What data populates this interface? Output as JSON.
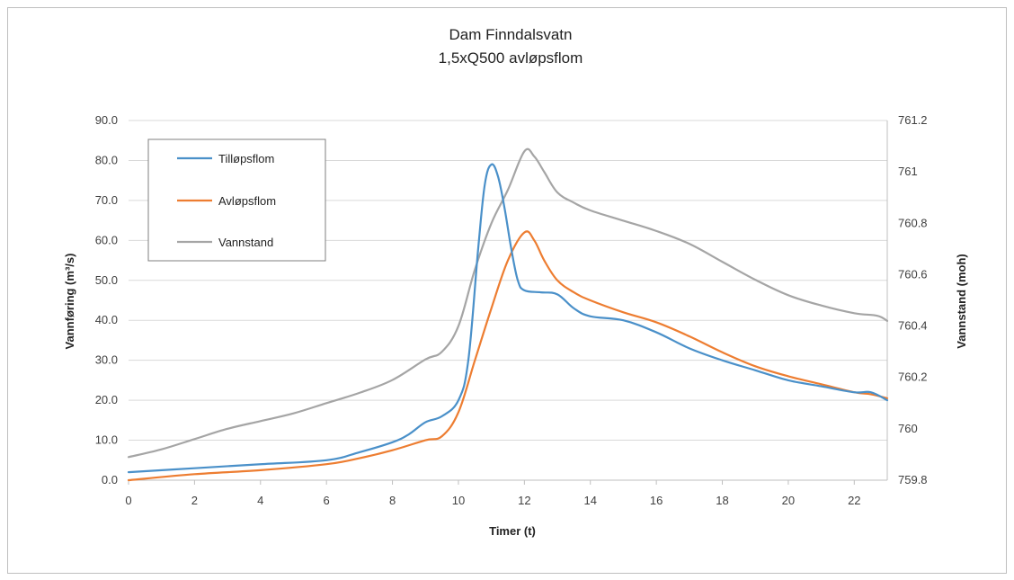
{
  "chart_data": {
    "type": "line",
    "title": "Dam Finndalsvatn",
    "subtitle": "1,5xQ500 avløpsflom",
    "xlabel": "Timer (t)",
    "ylabel": "Vannføring (m³/s)",
    "y2label": "Vannstand (moh)",
    "xlim": [
      0,
      23
    ],
    "ylim": [
      0,
      90
    ],
    "y2lim": [
      759.8,
      761.2
    ],
    "x_ticks": [
      "0",
      "2",
      "4",
      "6",
      "8",
      "10",
      "12",
      "14",
      "16",
      "18",
      "20",
      "22"
    ],
    "y_ticks": [
      "0.0",
      "10.0",
      "20.0",
      "30.0",
      "40.0",
      "50.0",
      "60.0",
      "70.0",
      "80.0",
      "90.0"
    ],
    "y2_ticks": [
      "759.8",
      "760",
      "760.2",
      "760.4",
      "760.6",
      "760.8",
      "761",
      "761.2"
    ],
    "grid": "horizontal",
    "legend_position": "top-left",
    "series": [
      {
        "name": "Tilløpsflom",
        "axis": "left",
        "color": "#4a90c9",
        "x": [
          0,
          2,
          4,
          6,
          7,
          8,
          8.5,
          9,
          9.5,
          10,
          10.3,
          10.6,
          10.8,
          11,
          11.2,
          11.4,
          11.6,
          11.8,
          12,
          12.5,
          13,
          13.5,
          14,
          15,
          16,
          17,
          18,
          19,
          20,
          21,
          22,
          22.5,
          23
        ],
        "values": [
          2.0,
          3.0,
          4.0,
          5.0,
          7.0,
          9.5,
          11.5,
          14.5,
          16.0,
          20.0,
          30.0,
          58.0,
          74.0,
          79.0,
          76.0,
          68.0,
          58.0,
          50.0,
          47.5,
          47.0,
          46.5,
          43.0,
          41.0,
          40.0,
          37.0,
          33.0,
          30.0,
          27.5,
          25.0,
          23.5,
          22.0,
          22.0,
          20.0
        ]
      },
      {
        "name": "Avløpsflom",
        "axis": "left",
        "color": "#ed7d31",
        "x": [
          0,
          2,
          4,
          6,
          7,
          8,
          9,
          9.5,
          10,
          10.5,
          11,
          11.5,
          12,
          12.3,
          12.6,
          13,
          13.5,
          14,
          15,
          16,
          17,
          18,
          19,
          20,
          21,
          22,
          22.5,
          23
        ],
        "values": [
          0.0,
          1.5,
          2.5,
          4.0,
          5.5,
          7.5,
          10.0,
          11.0,
          17.0,
          30.0,
          43.0,
          55.0,
          62.0,
          60.0,
          55.0,
          50.0,
          47.0,
          45.0,
          42.0,
          39.5,
          36.0,
          32.0,
          28.5,
          26.0,
          24.0,
          22.0,
          21.5,
          20.5
        ]
      },
      {
        "name": "Vannstand",
        "axis": "right",
        "color": "#a5a5a5",
        "x": [
          0,
          1,
          2,
          3,
          4,
          5,
          6,
          7,
          8,
          9,
          9.5,
          10,
          10.5,
          11,
          11.5,
          12,
          12.3,
          12.6,
          13,
          13.5,
          14,
          15,
          16,
          17,
          18,
          19,
          20,
          21,
          22,
          22.7,
          23
        ],
        "values": [
          759.89,
          759.92,
          759.96,
          760.0,
          760.03,
          760.06,
          760.1,
          760.14,
          760.19,
          760.27,
          760.3,
          760.4,
          760.62,
          760.8,
          760.93,
          761.08,
          761.06,
          761.0,
          760.92,
          760.88,
          760.85,
          760.81,
          760.77,
          760.72,
          760.65,
          760.58,
          760.52,
          760.48,
          760.45,
          760.44,
          760.42
        ]
      }
    ]
  }
}
